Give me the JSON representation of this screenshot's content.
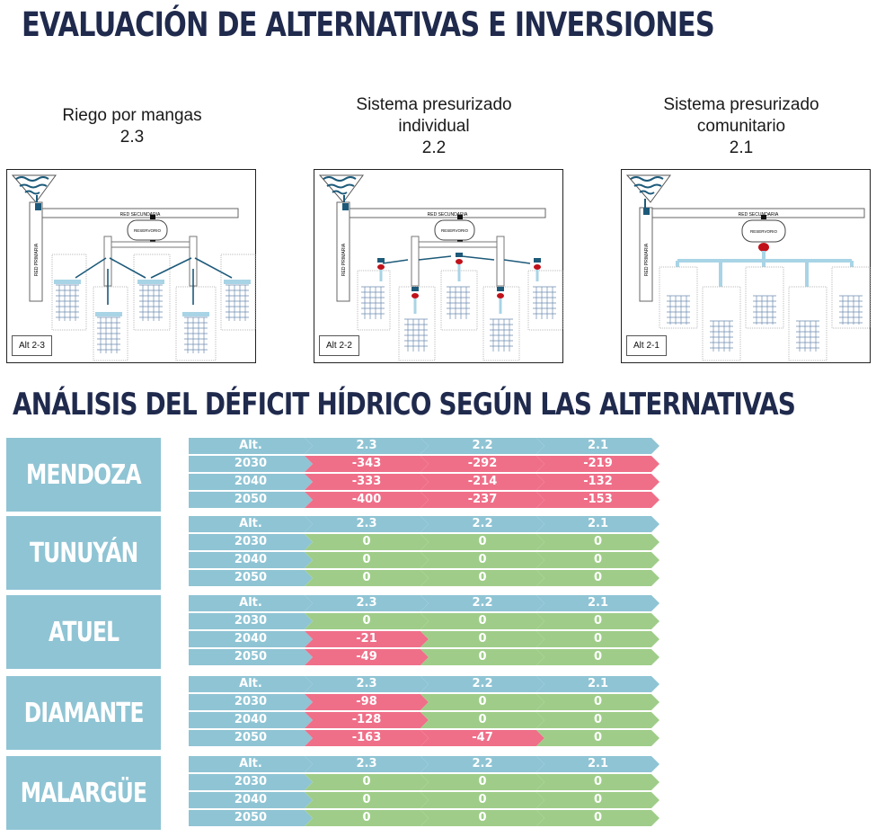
{
  "titles": {
    "main": "EVALUACIÓN DE ALTERNATIVAS E INVERSIONES",
    "analysis": "ANÁLISIS DEL DÉFICIT HÍDRICO SEGÚN LAS ALTERNATIVAS"
  },
  "alternatives": [
    {
      "name_line1": "Riego por mangas",
      "name_line2": "",
      "code": "2.3",
      "tag": "Alt 2-3"
    },
    {
      "name_line1": "Sistema presurizado",
      "name_line2": "individual",
      "code": "2.2",
      "tag": "Alt 2-2"
    },
    {
      "name_line1": "Sistema presurizado",
      "name_line2": "comunitario",
      "code": "2.1",
      "tag": "Alt 2-1"
    }
  ],
  "diagram_labels": {
    "secondary": "RED SECUNDARIA",
    "primary": "RED PRIMARIA",
    "reservoir": "RESERVORIO"
  },
  "colors": {
    "header": "#8fc4d4",
    "deficit": "#ef6f89",
    "no_deficit": "#9fcd89",
    "title": "#1f2a4d"
  },
  "table_header": [
    "Alt.",
    "2.3",
    "2.2",
    "2.1"
  ],
  "regions": [
    {
      "name": "MENDOZA",
      "rows": [
        {
          "year": "2030",
          "values": [
            "-343",
            "-292",
            "-219"
          ]
        },
        {
          "year": "2040",
          "values": [
            "-333",
            "-214",
            "-132"
          ]
        },
        {
          "year": "2050",
          "values": [
            "-400",
            "-237",
            "-153"
          ]
        }
      ]
    },
    {
      "name": "TUNUYÁN",
      "rows": [
        {
          "year": "2030",
          "values": [
            "0",
            "0",
            "0"
          ]
        },
        {
          "year": "2040",
          "values": [
            "0",
            "0",
            "0"
          ]
        },
        {
          "year": "2050",
          "values": [
            "0",
            "0",
            "0"
          ]
        }
      ]
    },
    {
      "name": "ATUEL",
      "rows": [
        {
          "year": "2030",
          "values": [
            "0",
            "0",
            "0"
          ]
        },
        {
          "year": "2040",
          "values": [
            "-21",
            "0",
            "0"
          ]
        },
        {
          "year": "2050",
          "values": [
            "-49",
            "0",
            "0"
          ]
        }
      ]
    },
    {
      "name": "DIAMANTE",
      "rows": [
        {
          "year": "2030",
          "values": [
            "-98",
            "0",
            "0"
          ]
        },
        {
          "year": "2040",
          "values": [
            "-128",
            "0",
            "0"
          ]
        },
        {
          "year": "2050",
          "values": [
            "-163",
            "-47",
            "0"
          ]
        }
      ]
    },
    {
      "name": "MALARGÜE",
      "rows": [
        {
          "year": "2030",
          "values": [
            "0",
            "0",
            "0"
          ]
        },
        {
          "year": "2040",
          "values": [
            "0",
            "0",
            "0"
          ]
        },
        {
          "year": "2050",
          "values": [
            "0",
            "0",
            "0"
          ]
        }
      ]
    }
  ]
}
